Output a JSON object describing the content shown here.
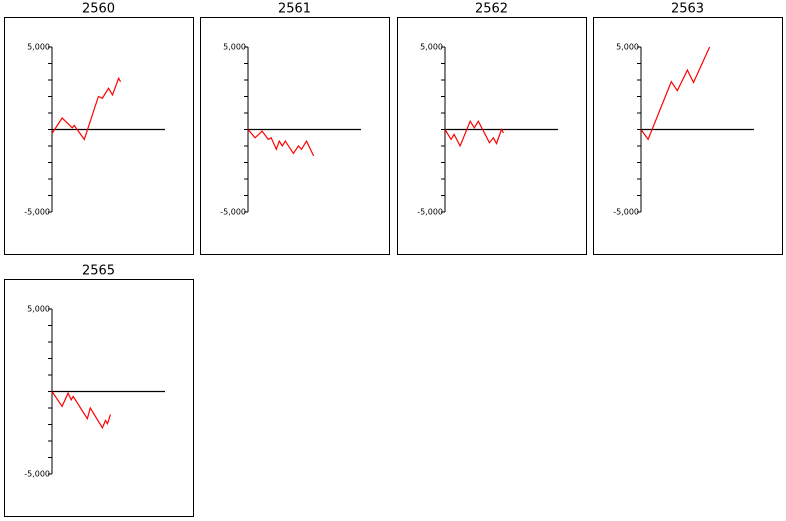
{
  "chart_data": [
    {
      "type": "line",
      "title": "2560",
      "color": "#ff0000",
      "xlim": [
        0,
        56
      ],
      "ylim": [
        -5000,
        5000
      ],
      "yticks": [
        {
          "value": -5000,
          "label": "-5,000"
        },
        {
          "value": 5000,
          "label": "5,000"
        }
      ],
      "minor_yticks": [
        -4000,
        -3000,
        -2000,
        -1000,
        0,
        1000,
        2000,
        3000,
        4000
      ],
      "x": [
        0,
        5,
        10,
        11,
        16,
        23,
        25,
        28,
        30,
        33,
        34
      ],
      "values": [
        -250,
        700,
        100,
        250,
        -600,
        2000,
        1900,
        2500,
        2100,
        3100,
        2900
      ]
    },
    {
      "type": "line",
      "title": "2561",
      "color": "#ff0000",
      "xlim": [
        0,
        56
      ],
      "ylim": [
        -5000,
        5000
      ],
      "yticks": [
        {
          "value": -5000,
          "label": "-5,000"
        },
        {
          "value": 5000,
          "label": "5,000"
        }
      ],
      "minor_yticks": [
        -4000,
        -3000,
        -2000,
        -1000,
        0,
        1000,
        2000,
        3000,
        4000
      ],
      "x": [
        0,
        3.5,
        7,
        10,
        11.5,
        14,
        15.5,
        17,
        18.5,
        22.5,
        25,
        26.5,
        29,
        32.5
      ],
      "values": [
        0,
        -500,
        -100,
        -600,
        -500,
        -1200,
        -700,
        -1000,
        -700,
        -1450,
        -1000,
        -1200,
        -700,
        -1600
      ]
    },
    {
      "type": "line",
      "title": "2562",
      "color": "#ff0000",
      "xlim": [
        0,
        56
      ],
      "ylim": [
        -5000,
        5000
      ],
      "yticks": [
        {
          "value": -5000,
          "label": "-5,000"
        },
        {
          "value": 5000,
          "label": "5,000"
        }
      ],
      "minor_yticks": [
        -4000,
        -3000,
        -2000,
        -1000,
        0,
        1000,
        2000,
        3000,
        4000
      ],
      "x": [
        0,
        3,
        4.5,
        7.5,
        12.5,
        14.5,
        16.5,
        22,
        24,
        25.5,
        28,
        29
      ],
      "values": [
        0,
        -600,
        -300,
        -1000,
        500,
        100,
        500,
        -800,
        -500,
        -850,
        0,
        -200
      ]
    },
    {
      "type": "line",
      "title": "2563",
      "color": "#ff0000",
      "xlim": [
        0,
        56
      ],
      "ylim": [
        -5000,
        5000
      ],
      "yticks": [
        {
          "value": -5000,
          "label": "-5,000"
        },
        {
          "value": 5000,
          "label": "5,000"
        }
      ],
      "minor_yticks": [
        -4000,
        -3000,
        -2000,
        -1000,
        0,
        1000,
        2000,
        3000,
        4000
      ],
      "x": [
        0,
        3.5,
        15,
        18,
        23,
        26,
        34
      ],
      "values": [
        0,
        -600,
        2900,
        2350,
        3600,
        2850,
        5000
      ]
    },
    {
      "type": "line",
      "title": "2565",
      "color": "#ff0000",
      "xlim": [
        0,
        56
      ],
      "ylim": [
        -5000,
        5000
      ],
      "yticks": [
        {
          "value": -5000,
          "label": "-5,000"
        },
        {
          "value": 5000,
          "label": "5,000"
        }
      ],
      "minor_yticks": [
        -4000,
        -3000,
        -2000,
        -1000,
        0,
        1000,
        2000,
        3000,
        4000
      ],
      "x": [
        0,
        5,
        8,
        9.5,
        10.5,
        17.5,
        19,
        25,
        26.5,
        27.5,
        29
      ],
      "values": [
        0,
        -900,
        -100,
        -500,
        -300,
        -1650,
        -1000,
        -2200,
        -1750,
        -1950,
        -1400
      ]
    }
  ]
}
